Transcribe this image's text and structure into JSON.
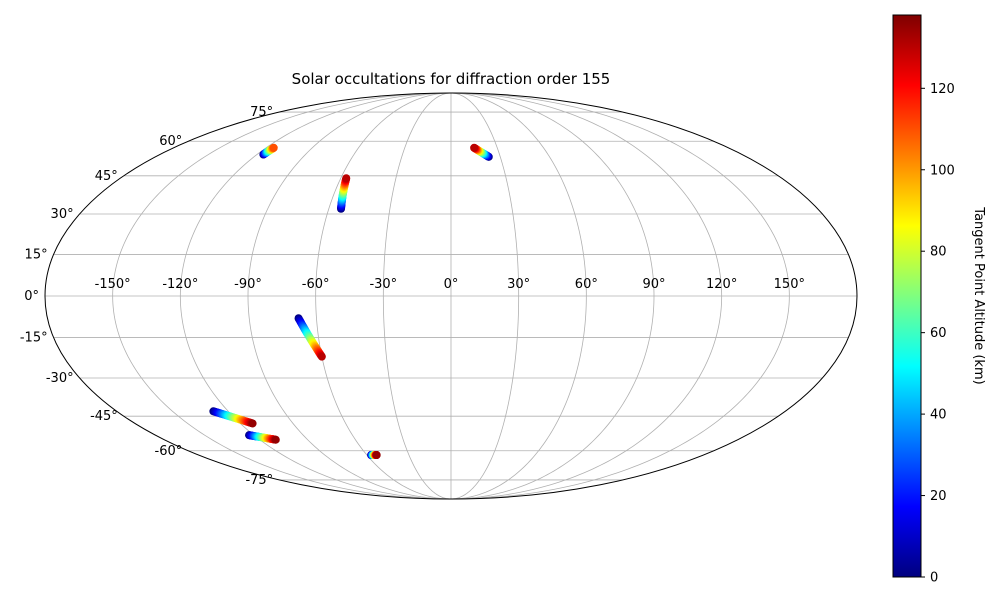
{
  "chart_data": {
    "type": "scatter",
    "projection": "mollweide",
    "title": "Solar occultations for diffraction order 155",
    "grid": true,
    "lon_ticks": [
      -150,
      -120,
      -90,
      -60,
      -30,
      0,
      30,
      60,
      90,
      120,
      150
    ],
    "lon_tick_labels": [
      "-150°",
      "-120°",
      "-90°",
      "-60°",
      "-30°",
      "0°",
      "30°",
      "60°",
      "90°",
      "120°",
      "150°"
    ],
    "lat_ticks": [
      75,
      60,
      45,
      30,
      15,
      0,
      -15,
      -30,
      -45,
      -60,
      -75
    ],
    "lat_tick_labels": [
      "75°",
      "60°",
      "45°",
      "30°",
      "15°",
      "0°",
      "-15°",
      "-30°",
      "-45°",
      "-60°",
      "-75°"
    ],
    "colorbar": {
      "label": "Tangent Point Altitude (km)",
      "min": 0,
      "max": 138,
      "ticks": [
        0,
        20,
        40,
        60,
        80,
        100,
        120
      ],
      "colormap": "jet",
      "colors": [
        "#00007f",
        "#0000ff",
        "#007fff",
        "#00ffff",
        "#7fff7f",
        "#ffff00",
        "#ff7f00",
        "#ff0000",
        "#7f0000"
      ]
    },
    "tracks": [
      {
        "lon_start": -116,
        "lat_start": 54,
        "lon_end": -115,
        "lat_end": 57,
        "alt_start": 0,
        "alt_end": 110
      },
      {
        "lon_start": -54,
        "lat_start": 32,
        "lon_end": -57,
        "lat_end": 44,
        "alt_start": 0,
        "alt_end": 130
      },
      {
        "lon_start": 23,
        "lat_start": 53,
        "lon_end": 15,
        "lat_end": 57,
        "alt_start": 0,
        "alt_end": 130
      },
      {
        "lon_start": -68,
        "lat_start": -8,
        "lon_end": -60,
        "lat_end": -22,
        "alt_start": 0,
        "alt_end": 130
      },
      {
        "lon_start": -128,
        "lat_start": -43,
        "lon_end": -113,
        "lat_end": -48,
        "alt_start": 0,
        "alt_end": 135
      },
      {
        "lon_start": -123,
        "lat_start": -53,
        "lon_end": -110,
        "lat_end": -55,
        "alt_start": 0,
        "alt_end": 135
      },
      {
        "lon_start": -57,
        "lat_start": -62,
        "lon_end": -53,
        "lat_end": -62,
        "alt_start": 0,
        "alt_end": 135
      }
    ]
  }
}
